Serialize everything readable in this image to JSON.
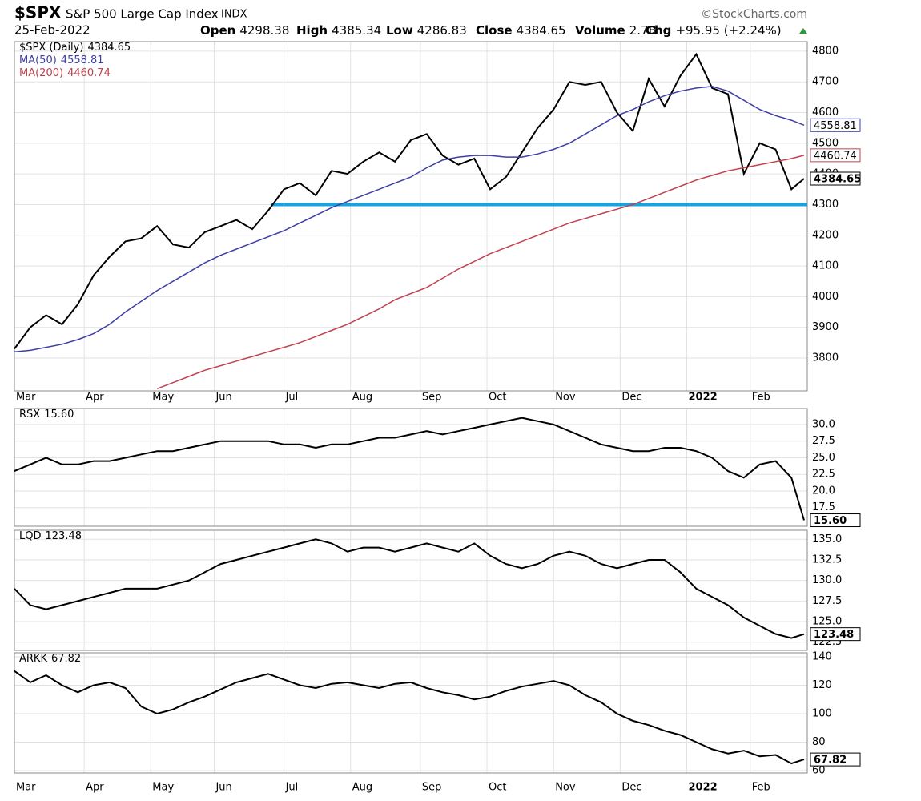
{
  "header": {
    "symbol": "$SPX",
    "name": "S&P 500 Large Cap Index",
    "exchange": "INDX",
    "credit": "©StockCharts.com",
    "date": "25-Feb-2022",
    "stats": [
      {
        "label": "Open",
        "value": "4298.38"
      },
      {
        "label": "High",
        "value": "4385.34"
      },
      {
        "label": "Low",
        "value": "4286.83"
      },
      {
        "label": "Close",
        "value": "4384.65"
      },
      {
        "label": "Volume",
        "value": "2.7B"
      },
      {
        "label": "Chg",
        "value": "+95.95 (+2.24%)"
      }
    ]
  },
  "chart_data": [
    {
      "type": "line",
      "x": [
        0,
        5,
        10,
        15,
        20,
        25,
        30,
        35,
        40,
        45,
        50,
        55,
        60,
        65,
        70,
        75,
        80,
        85,
        90,
        95,
        100,
        105,
        110,
        115,
        120,
        125,
        130,
        135,
        140,
        145,
        150,
        155,
        160,
        165,
        170,
        175,
        180,
        185,
        190,
        195,
        200,
        205,
        210,
        215,
        220,
        225,
        230,
        235,
        240,
        245,
        249
      ],
      "series": [
        {
          "name": "$SPX (Daily)",
          "color": "#000000",
          "values": [
            3830,
            3900,
            3940,
            3910,
            3975,
            4070,
            4130,
            4180,
            4190,
            4230,
            4170,
            4160,
            4210,
            4230,
            4250,
            4220,
            4280,
            4350,
            4370,
            4330,
            4410,
            4400,
            4440,
            4470,
            4440,
            4510,
            4530,
            4460,
            4430,
            4450,
            4350,
            4390,
            4470,
            4550,
            4610,
            4700,
            4690,
            4700,
            4600,
            4540,
            4710,
            4620,
            4720,
            4790,
            4680,
            4660,
            4400,
            4500,
            4480,
            4350,
            4384.65
          ]
        },
        {
          "name": "MA(50)",
          "color": "#3d3fa6",
          "values": [
            3820,
            3825,
            3835,
            3845,
            3860,
            3880,
            3910,
            3950,
            3985,
            4020,
            4050,
            4080,
            4110,
            4135,
            4155,
            4175,
            4195,
            4215,
            4240,
            4265,
            4290,
            4310,
            4330,
            4350,
            4370,
            4390,
            4420,
            4445,
            4455,
            4460,
            4460,
            4455,
            4455,
            4465,
            4480,
            4500,
            4530,
            4560,
            4590,
            4610,
            4635,
            4655,
            4670,
            4680,
            4685,
            4670,
            4640,
            4610,
            4590,
            4575,
            4558.81
          ]
        },
        {
          "name": "MA(200)",
          "color": "#c0424f",
          "values": [
            null,
            null,
            null,
            null,
            null,
            null,
            null,
            null,
            null,
            3700,
            3720,
            3740,
            3760,
            3775,
            3790,
            3805,
            3820,
            3835,
            3850,
            3870,
            3890,
            3910,
            3935,
            3960,
            3990,
            4010,
            4030,
            4060,
            4090,
            4115,
            4140,
            4160,
            4180,
            4200,
            4220,
            4240,
            4255,
            4270,
            4285,
            4300,
            4320,
            4340,
            4360,
            4380,
            4395,
            4410,
            4420,
            4430,
            4440,
            4450,
            4460.74
          ]
        }
      ],
      "hline": {
        "value": 4300,
        "x_start": 81,
        "color": "#16a4e0"
      },
      "xlim": [
        0,
        250
      ],
      "ylim": [
        3693,
        4831
      ],
      "yticks": [
        3800,
        3900,
        4000,
        4100,
        4200,
        4300,
        4400,
        4500,
        4600,
        4700,
        4800
      ],
      "xticks": [
        {
          "value": 0,
          "label": "Mar"
        },
        {
          "value": 22,
          "label": "Apr"
        },
        {
          "value": 43,
          "label": "May"
        },
        {
          "value": 63,
          "label": "Jun"
        },
        {
          "value": 85,
          "label": "Jul"
        },
        {
          "value": 106,
          "label": "Aug"
        },
        {
          "value": 128,
          "label": "Sep"
        },
        {
          "value": 149,
          "label": "Oct"
        },
        {
          "value": 170,
          "label": "Nov"
        },
        {
          "value": 191,
          "label": "Dec"
        },
        {
          "value": 212,
          "label": "2022"
        },
        {
          "value": 232,
          "label": "Feb"
        }
      ],
      "grid": true
    },
    {
      "type": "line",
      "x": [
        0,
        5,
        10,
        15,
        20,
        25,
        30,
        35,
        40,
        45,
        50,
        55,
        60,
        65,
        70,
        75,
        80,
        85,
        90,
        95,
        100,
        105,
        110,
        115,
        120,
        125,
        130,
        135,
        140,
        145,
        150,
        155,
        160,
        165,
        170,
        175,
        180,
        185,
        190,
        195,
        200,
        205,
        210,
        215,
        220,
        225,
        230,
        235,
        240,
        245,
        249
      ],
      "series": [
        {
          "name": "RSX",
          "color": "#000000",
          "last_label": "15.60",
          "values": [
            23,
            24,
            25,
            24,
            24,
            24.5,
            24.5,
            25,
            25.5,
            26,
            26,
            26.5,
            27,
            27.5,
            27.5,
            27.5,
            27.5,
            27,
            27,
            26.5,
            27,
            27,
            27.5,
            28,
            28,
            28.5,
            29,
            28.5,
            29,
            29.5,
            30,
            30.5,
            31,
            30.5,
            30,
            29,
            28,
            27,
            26.5,
            26,
            26,
            26.5,
            26.5,
            26,
            25,
            23,
            22,
            24,
            24.5,
            22,
            15.6
          ]
        }
      ],
      "xlim": [
        0,
        250
      ],
      "ylim": [
        14.7,
        32.4
      ],
      "yticks": [
        17.5,
        {
          "value": 20,
          "label": "20.0"
        },
        22.5,
        {
          "value": 25,
          "label": "25.0"
        },
        27.5,
        {
          "value": 30,
          "label": "30.0"
        }
      ],
      "grid": true
    },
    {
      "type": "line",
      "x": [
        0,
        5,
        10,
        15,
        20,
        25,
        30,
        35,
        40,
        45,
        50,
        55,
        60,
        65,
        70,
        75,
        80,
        85,
        90,
        95,
        100,
        105,
        110,
        115,
        120,
        125,
        130,
        135,
        140,
        145,
        150,
        155,
        160,
        165,
        170,
        175,
        180,
        185,
        190,
        195,
        200,
        205,
        210,
        215,
        220,
        225,
        230,
        235,
        240,
        245,
        249
      ],
      "series": [
        {
          "name": "LQD",
          "color": "#000000",
          "values": [
            129,
            127,
            126.5,
            127,
            127.5,
            128,
            128.5,
            129,
            129,
            129,
            129.5,
            130,
            131,
            132,
            132.5,
            133,
            133.5,
            134,
            134.5,
            135,
            134.5,
            133.5,
            134,
            134,
            133.5,
            134,
            134.5,
            134,
            133.5,
            134.5,
            133,
            132,
            131.5,
            132,
            133,
            133.5,
            133,
            132,
            131.5,
            132,
            132.5,
            132.5,
            131,
            129,
            128,
            127,
            125.5,
            124.5,
            123.5,
            123,
            123.48
          ]
        }
      ],
      "xlim": [
        0,
        250
      ],
      "ylim": [
        121.5,
        136.1
      ],
      "yticks": [
        122.5,
        {
          "value": 125,
          "label": "125.0"
        },
        127.5,
        {
          "value": 130,
          "label": "130.0"
        },
        132.5,
        {
          "value": 135,
          "label": "135.0"
        }
      ],
      "grid": true
    },
    {
      "type": "line",
      "x": [
        0,
        5,
        10,
        15,
        20,
        25,
        30,
        35,
        40,
        45,
        50,
        55,
        60,
        65,
        70,
        75,
        80,
        85,
        90,
        95,
        100,
        105,
        110,
        115,
        120,
        125,
        130,
        135,
        140,
        145,
        150,
        155,
        160,
        165,
        170,
        175,
        180,
        185,
        190,
        195,
        200,
        205,
        210,
        215,
        220,
        225,
        230,
        235,
        240,
        245,
        249
      ],
      "series": [
        {
          "name": "ARKK",
          "color": "#000000",
          "values": [
            130,
            122,
            127,
            120,
            115,
            120,
            122,
            118,
            105,
            100,
            103,
            108,
            112,
            117,
            122,
            125,
            128,
            124,
            120,
            118,
            121,
            122,
            120,
            118,
            121,
            122,
            118,
            115,
            113,
            110,
            112,
            116,
            119,
            121,
            123,
            120,
            113,
            108,
            100,
            95,
            92,
            88,
            85,
            80,
            75,
            72,
            74,
            70,
            71,
            65,
            67.82
          ]
        }
      ],
      "xlim": [
        0,
        250
      ],
      "ylim": [
        58.3,
        142.8
      ],
      "yticks": [
        60,
        80,
        100,
        120,
        140
      ],
      "xticks": [
        {
          "value": 0,
          "label": "Mar"
        },
        {
          "value": 22,
          "label": "Apr"
        },
        {
          "value": 43,
          "label": "May"
        },
        {
          "value": 63,
          "label": "Jun"
        },
        {
          "value": 85,
          "label": "Jul"
        },
        {
          "value": 106,
          "label": "Aug"
        },
        {
          "value": 128,
          "label": "Sep"
        },
        {
          "value": 149,
          "label": "Oct"
        },
        {
          "value": 170,
          "label": "Nov"
        },
        {
          "value": 191,
          "label": "Dec"
        },
        {
          "value": 212,
          "label": "2022"
        },
        {
          "value": 232,
          "label": "Feb"
        }
      ],
      "grid": true
    }
  ]
}
